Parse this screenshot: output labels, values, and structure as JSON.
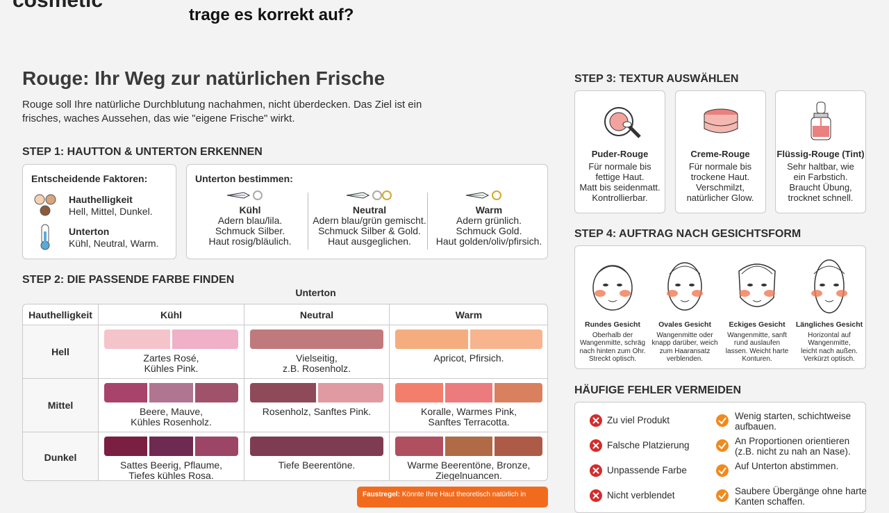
{
  "header": {
    "brand": "cosmetic",
    "question": "trage es korrekt auf?"
  },
  "title": "Rouge: Ihr Weg zur natürlichen Frische",
  "intro": [
    "Rouge soll Ihre natürliche Durchblutung nachahmen, nicht überdecken. Das Ziel ist ein",
    "frisches, waches Aussehen, das wie \"eigene Frische\" wirkt."
  ],
  "step1": {
    "heading": "STEP 1: HAUTTON & UNTERTON ERKENNEN",
    "factors_title": "Entscheidende Faktoren:",
    "factors": [
      {
        "label": "Hauthelligkeit",
        "text": "Hell, Mittel, Dunkel."
      },
      {
        "label": "Unterton",
        "text": "Kühl, Neutral, Warm."
      }
    ],
    "undertone_title": "Unterton bestimmen:",
    "undertones": [
      {
        "name": "Kühl",
        "lines": [
          "Adern blau/lila.",
          "Schmuck Silber.",
          "Haut rosig/bläulich."
        ]
      },
      {
        "name": "Neutral",
        "lines": [
          "Adern blau/grün gemischt.",
          "Schmuck Silber & Gold.",
          "Haut ausgeglichen."
        ]
      },
      {
        "name": "Warm",
        "lines": [
          "Adern grünlich.",
          "Schmuck Gold.",
          "Haut golden/oliv/pfirsich."
        ]
      }
    ]
  },
  "step2": {
    "heading": "STEP 2: DIE PASSENDE FARBE FINDEN",
    "supheader": "Unterton",
    "columns": [
      "Hauthelligkeit",
      "Kühl",
      "Neutral",
      "Warm"
    ],
    "rows": [
      {
        "label": "Hell",
        "cells": [
          {
            "swatches": [
              "#f5c4ca",
              "#efb0c8"
            ],
            "lines": [
              "Zartes Rosé,",
              "Kühles Pink."
            ]
          },
          {
            "swatches": [
              "#c07a7c"
            ],
            "lines": [
              "Vielseitig,",
              "z.B. Rosenholz."
            ]
          },
          {
            "swatches": [
              "#f5ad7f",
              "#f7b48f"
            ],
            "lines": [
              "Apricot, Pfirsich."
            ]
          }
        ]
      },
      {
        "label": "Mittel",
        "cells": [
          {
            "swatches": [
              "#a8436b",
              "#b07590",
              "#a0526a"
            ],
            "lines": [
              "Beere, Mauve,",
              "Kühles Rosenholz."
            ]
          },
          {
            "swatches": [
              "#8e4a58",
              "#e09aa2"
            ],
            "lines": [
              "Rosenholz, Sanftes Pink."
            ]
          },
          {
            "swatches": [
              "#f47e6c",
              "#ec7b7e",
              "#d9805f"
            ],
            "lines": [
              "Koralle, Warmes Pink,",
              "Sanftes Terracotta."
            ]
          }
        ]
      },
      {
        "label": "Dunkel",
        "cells": [
          {
            "swatches": [
              "#7a1f42",
              "#6e2a50",
              "#9c4566"
            ],
            "lines": [
              "Sattes Beerig, Pflaume,",
              "Tiefes kühles Rosa."
            ]
          },
          {
            "swatches": [
              "#7e3c52"
            ],
            "lines": [
              "Tiefe Beerentöne."
            ]
          },
          {
            "swatches": [
              "#b04f60",
              "#b06a45",
              "#ad5a47"
            ],
            "lines": [
              "Warme Beerentöne, Bronze,",
              "Ziegelnuancen."
            ]
          }
        ]
      }
    ]
  },
  "note": {
    "label": "Faustregel:",
    "text": "Könnte Ihre Haut theoretisch natürlich in"
  },
  "step3": {
    "heading": "STEP 3: TEXTUR AUSWÄHLEN",
    "cards": [
      {
        "name": "Puder-Rouge",
        "lines": [
          "Für normale bis",
          "fettige Haut.",
          "Matt bis seidenmatt.",
          "Kontrollierbar."
        ]
      },
      {
        "name": "Creme-Rouge",
        "lines": [
          "Für normale bis",
          "trockene Haut.",
          "Verschmilzt,",
          "natürlicher Glow."
        ]
      },
      {
        "name": "Flüssig-Rouge (Tint)",
        "lines": [
          "Sehr haltbar, wie",
          "ein Farbstich.",
          "Braucht Übung,",
          "trocknet schnell."
        ]
      }
    ]
  },
  "step4": {
    "heading": "STEP 4: AUFTRAG NACH GESICHTSFORM",
    "faces": [
      {
        "name": "Rundes Gesicht",
        "lines": [
          "Oberhalb der",
          "Wangenmitte, schräg",
          "nach hinten zum Ohr.",
          "Streckt optisch."
        ]
      },
      {
        "name": "Ovales Gesicht",
        "lines": [
          "Wangenmitte oder",
          "knapp darüber, weich",
          "zum Haaransatz",
          "verblenden."
        ]
      },
      {
        "name": "Eckiges Gesicht",
        "lines": [
          "Wangenmitte, sanft",
          "rund auslaufen",
          "lassen. Weicht harte",
          "Konturen."
        ]
      },
      {
        "name": "Längliches Gesicht",
        "lines": [
          "Horizontal auf",
          "Wangenmitte,",
          "leicht nach außen.",
          "Verkürzt optisch."
        ]
      }
    ]
  },
  "mistakes": {
    "heading": "HÄUFIGE FEHLER VERMEIDEN",
    "items": [
      {
        "wrong": "Zu viel Produkt",
        "right": [
          "Wenig starten, schichtweise",
          "aufbauen."
        ]
      },
      {
        "wrong": "Falsche Platzierung",
        "right": [
          "An Proportionen orientieren",
          "(z.B. nicht zu nah an Nase)."
        ]
      },
      {
        "wrong": "Unpassende Farbe",
        "right": [
          "Auf Unterton abstimmen."
        ]
      },
      {
        "wrong": "Nicht verblendet",
        "right": [
          "Saubere Übergänge ohne harte",
          "Kanten schaffen."
        ]
      }
    ]
  }
}
